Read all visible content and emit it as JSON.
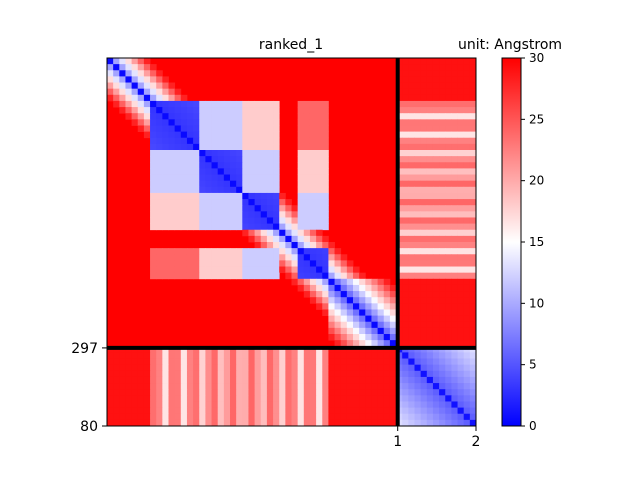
{
  "chart_data": {
    "type": "heatmap",
    "title": "ranked_1",
    "colorbar_title": "unit: Angstrom",
    "colormap": [
      "#0000ff",
      "#ffffff",
      "#ff0000"
    ],
    "value_range": [
      0,
      30
    ],
    "colorbar_ticks": [
      "0",
      "5",
      "10",
      "15",
      "20",
      "25",
      "30"
    ],
    "x_ticks": [
      "1",
      "2"
    ],
    "y_ticks": [
      "297",
      "80"
    ],
    "chains": [
      {
        "id": "1",
        "length": 297
      },
      {
        "id": "2",
        "length": 80
      }
    ],
    "domains_chain1": [
      [
        0.12,
        0.25
      ],
      [
        0.25,
        0.36
      ],
      [
        0.36,
        0.46
      ],
      [
        0.52,
        0.6
      ]
    ],
    "background_value_inter_chain": 30,
    "background_value_far": 30,
    "diagonal_value": 0
  }
}
